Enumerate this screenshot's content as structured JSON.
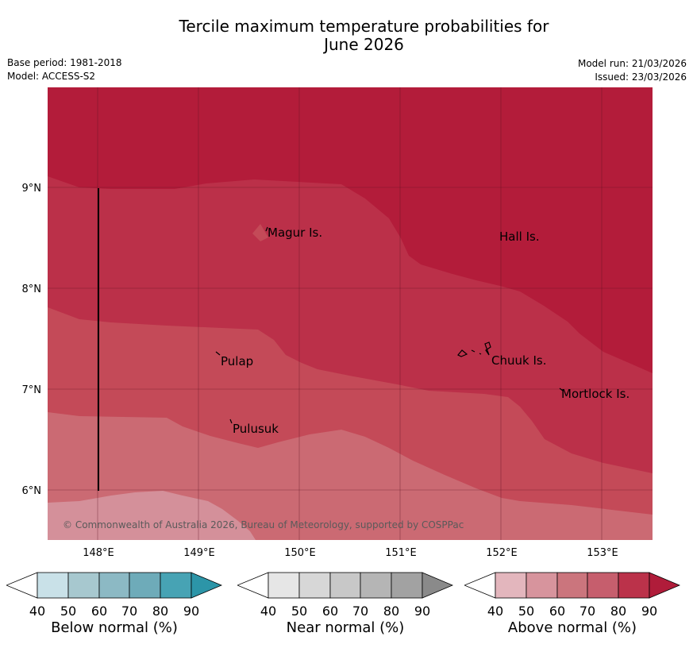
{
  "header": {
    "title_line1": "Tercile maximum temperature probabilities for",
    "title_line2": "June 2026",
    "base_period": "Base period: 1981-2018",
    "model": "Model: ACCESS-S2",
    "model_run": "Model run: 21/03/2026",
    "issued": "Issued: 23/03/2026"
  },
  "map": {
    "lon_labels": [
      "148°E",
      "149°E",
      "150°E",
      "151°E",
      "152°E",
      "153°E"
    ],
    "lat_labels": [
      "9°N",
      "8°N",
      "7°N",
      "6°N"
    ],
    "places": [
      "Magur Is.",
      "Hall Is.",
      "Pulap",
      "Chuuk Is.",
      "Mortlock Is.",
      "Pulusuk"
    ],
    "copyright": "© Commonwealth of Australia 2026, Bureau of Meteorology, supported by COSPPac",
    "colors": {
      "band_90": "#b31c3a",
      "band_80": "#bb3049",
      "band_70": "#c44a58",
      "band_60": "#cb6a73",
      "band_50": "#d4909a"
    }
  },
  "legends": [
    {
      "title": "Below normal (%)",
      "ticks": [
        "40",
        "50",
        "60",
        "70",
        "80",
        "90"
      ],
      "colors": [
        "#ffffff",
        "#c9e1e8",
        "#a7c8cf",
        "#8cb9c4",
        "#6eabb9",
        "#47a3b4",
        "#2c95a8"
      ]
    },
    {
      "title": "Near normal (%)",
      "ticks": [
        "40",
        "50",
        "60",
        "70",
        "80",
        "90"
      ],
      "colors": [
        "#ffffff",
        "#e6e6e6",
        "#d7d7d7",
        "#c8c8c8",
        "#b5b5b5",
        "#a2a2a2",
        "#8a8a8a"
      ]
    },
    {
      "title": "Above normal (%)",
      "ticks": [
        "40",
        "50",
        "60",
        "70",
        "80",
        "90"
      ],
      "colors": [
        "#ffffff",
        "#e3b6bd",
        "#d7949d",
        "#cb757d",
        "#c65e6d",
        "#bb324a",
        "#b01c3a"
      ]
    }
  ]
}
